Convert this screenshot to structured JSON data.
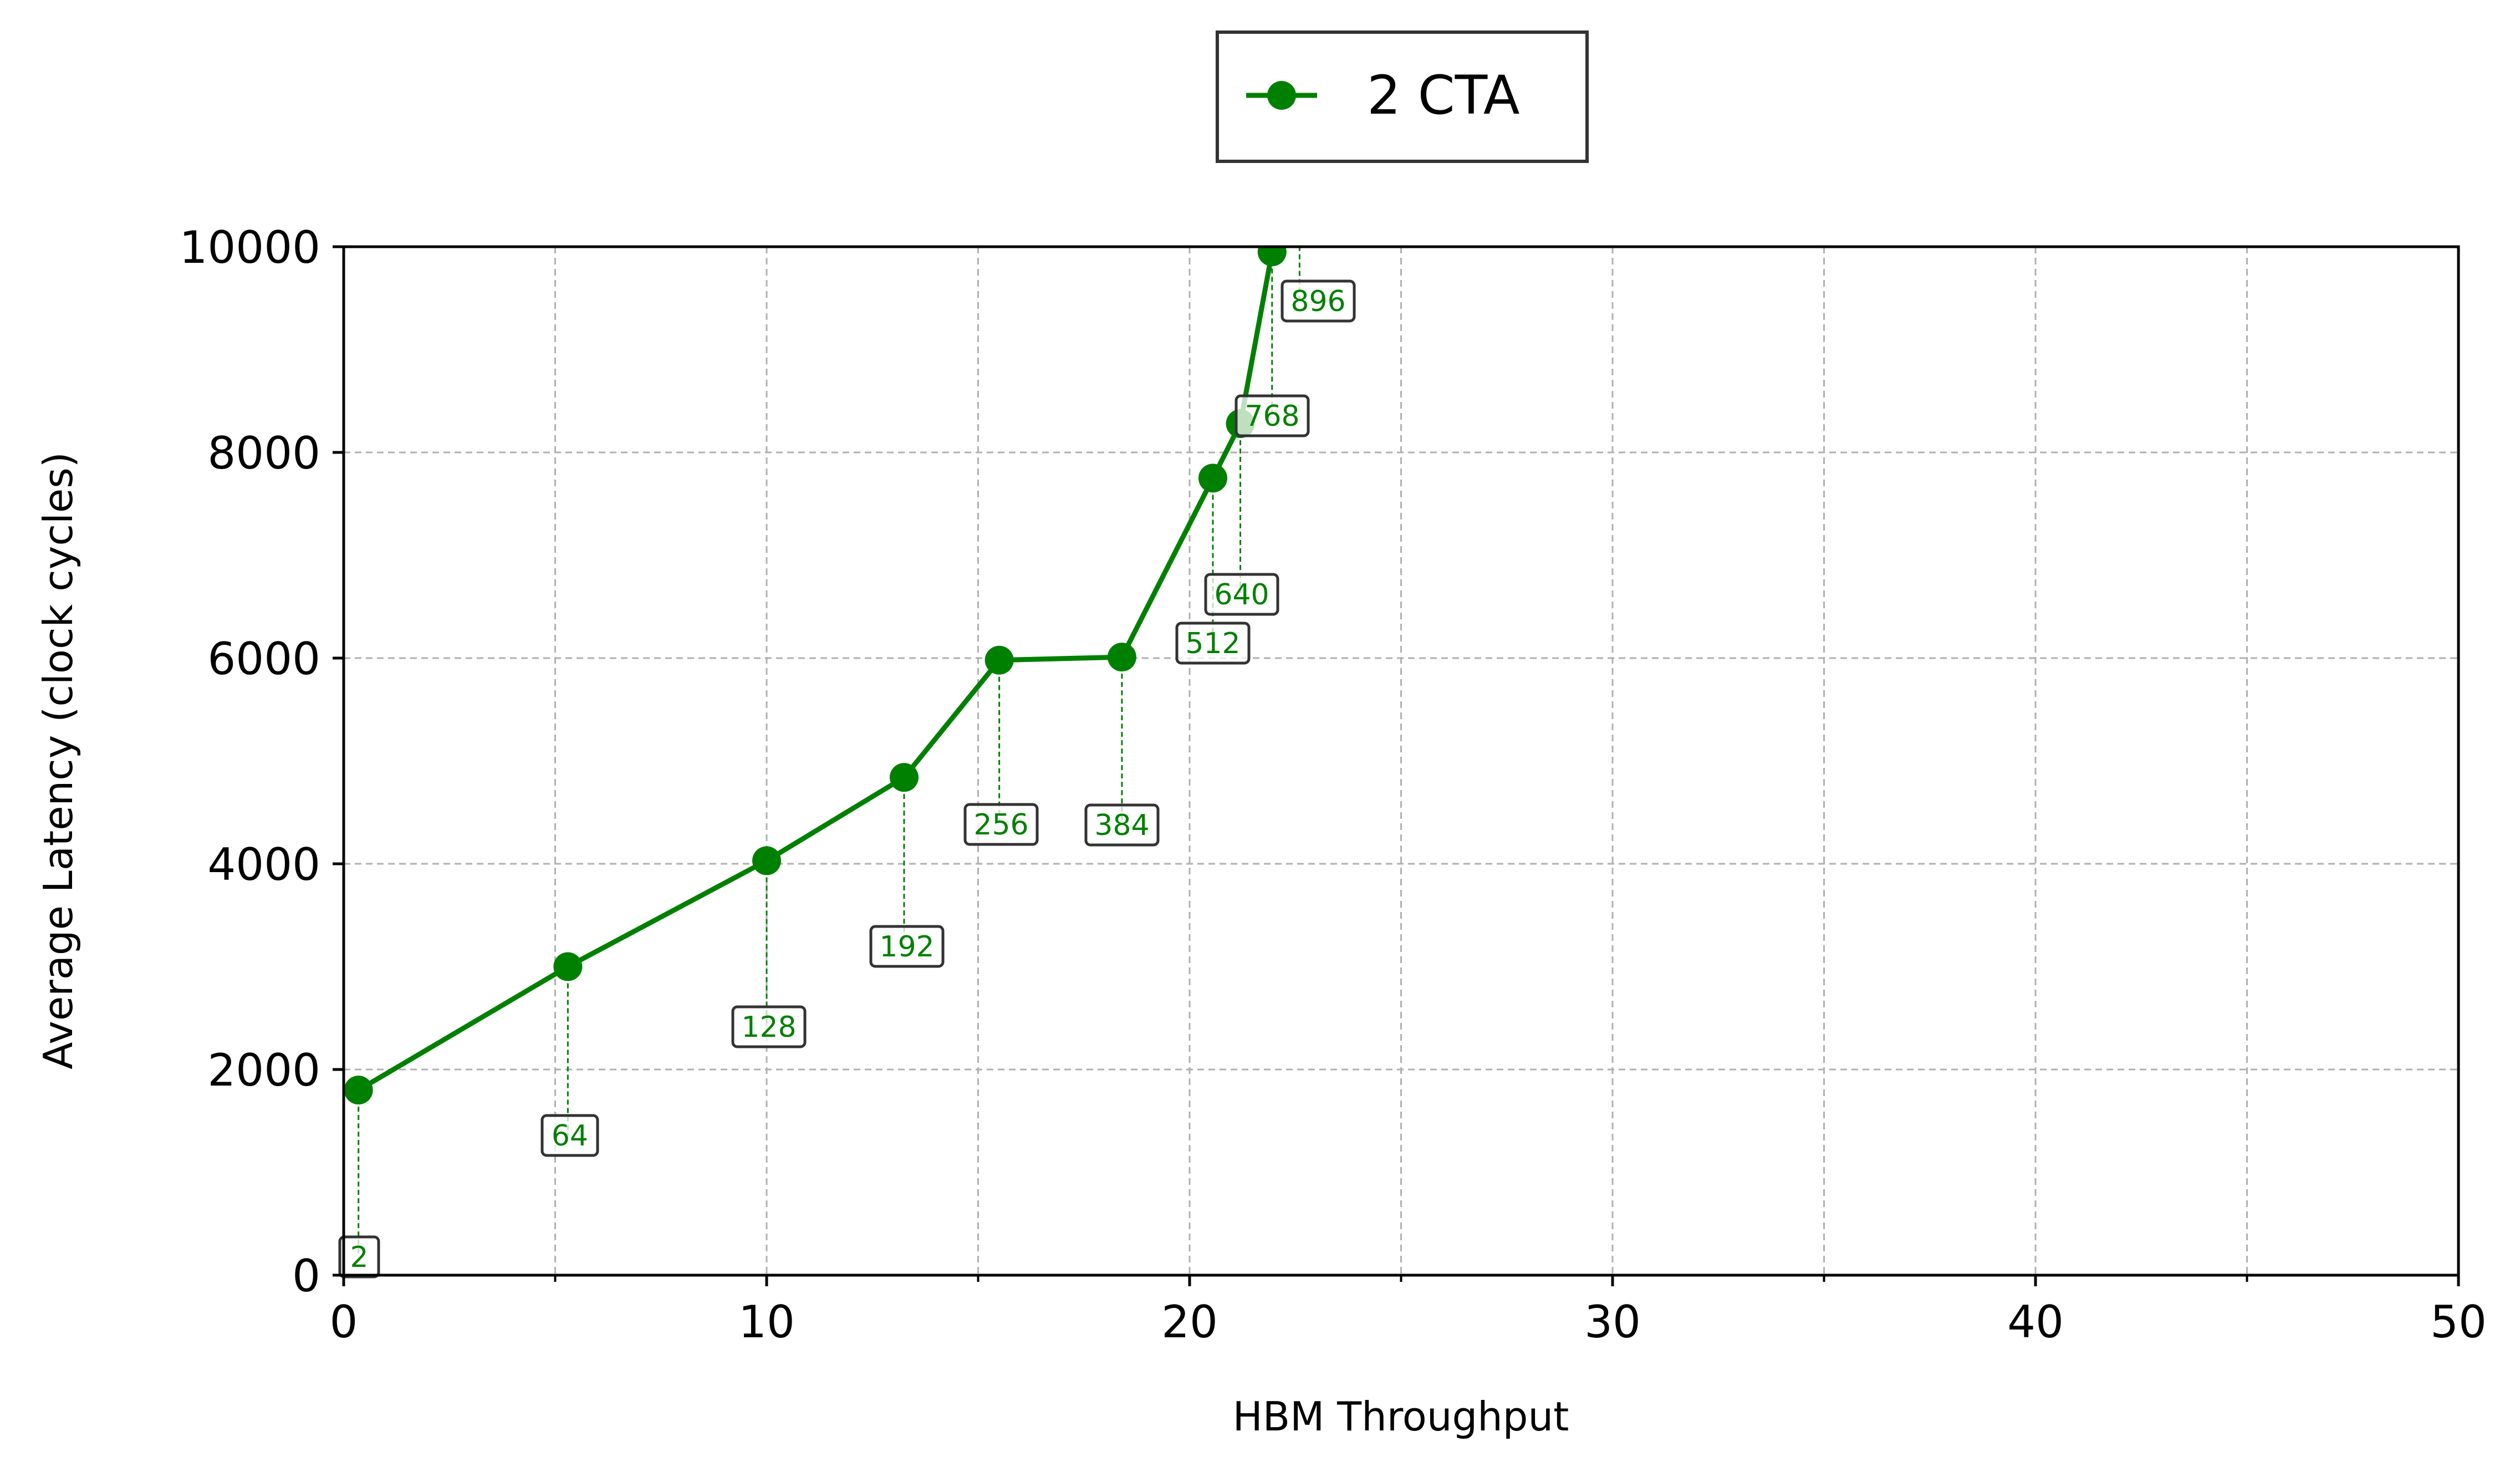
{
  "chart_data": {
    "type": "line",
    "xlabel": "HBM Throughput",
    "ylabel": "Average Latency (clock cycles)",
    "xlim": [
      0,
      50
    ],
    "ylim": [
      0,
      10000
    ],
    "xticks": [
      0,
      10,
      20,
      30,
      40,
      50
    ],
    "yticks": [
      0,
      2000,
      4000,
      6000,
      8000,
      10000
    ],
    "grid": true,
    "legend_position": "top-center",
    "series": [
      {
        "name": "2 CTA",
        "color": "#008000",
        "marker": "circle",
        "x": [
          0.35,
          5.3,
          10.0,
          13.25,
          15.5,
          18.4,
          20.55,
          21.2,
          21.95,
          22.6
        ],
        "y": [
          1800,
          3000,
          4030,
          4840,
          5980,
          6010,
          7750,
          8280,
          9950,
          10250
        ],
        "labels": [
          "2",
          "64",
          "128",
          "192",
          "256",
          "384",
          "512",
          "640",
          "768",
          "896"
        ]
      }
    ]
  }
}
